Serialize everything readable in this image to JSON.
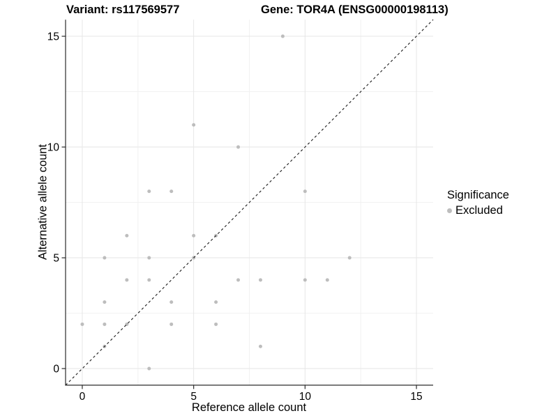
{
  "header": {
    "variant_title": "Variant: rs117569577",
    "gene_title": "Gene: TOR4A (ENSG00000198113)"
  },
  "legend": {
    "title": "Significance",
    "items": [
      {
        "label": "Excluded",
        "color": "#bdbdbd",
        "marker": "circle-icon"
      }
    ]
  },
  "colors": {
    "background": "#ffffff",
    "point": "#bdbdbd",
    "major_grid": "#e6e6e6",
    "minor_grid": "#f1f1f1",
    "axis_line": "#2b2b2b",
    "tick_text": "#000000",
    "identity_line": "#1a1a1a"
  },
  "chart_data": {
    "type": "scatter",
    "title": "Variant: rs117569577    Gene: TOR4A (ENSG00000198113)",
    "xlabel": "Reference allele count",
    "ylabel": "Alternative allele count",
    "xlim": [
      -0.75,
      15.75
    ],
    "ylim": [
      -0.75,
      15.75
    ],
    "x_ticks": [
      0,
      5,
      10,
      15
    ],
    "y_ticks": [
      0,
      5,
      10,
      15
    ],
    "x_minor_ticks": [
      2.5,
      7.5,
      12.5
    ],
    "y_minor_ticks": [
      2.5,
      7.5,
      12.5
    ],
    "grid": "on",
    "legend_position": "right",
    "series": [
      {
        "name": "Excluded",
        "color": "#bdbdbd",
        "points": [
          [
            9,
            15
          ],
          [
            5,
            11
          ],
          [
            7,
            10
          ],
          [
            3,
            8
          ],
          [
            4,
            8
          ],
          [
            10,
            8
          ],
          [
            2,
            6
          ],
          [
            5,
            6
          ],
          [
            6,
            6
          ],
          [
            1,
            5
          ],
          [
            3,
            5
          ],
          [
            5,
            5
          ],
          [
            12,
            5
          ],
          [
            2,
            4
          ],
          [
            3,
            4
          ],
          [
            7,
            4
          ],
          [
            8,
            4
          ],
          [
            10,
            4
          ],
          [
            11,
            4
          ],
          [
            1,
            3
          ],
          [
            4,
            3
          ],
          [
            6,
            3
          ],
          [
            0,
            2
          ],
          [
            1,
            2
          ],
          [
            2,
            2
          ],
          [
            4,
            2
          ],
          [
            6,
            2
          ],
          [
            1,
            1
          ],
          [
            8,
            1
          ],
          [
            3,
            0
          ]
        ]
      }
    ],
    "reference_line": {
      "type": "identity",
      "slope": 1,
      "intercept": 0,
      "style": "dashed",
      "color": "#1a1a1a"
    }
  }
}
